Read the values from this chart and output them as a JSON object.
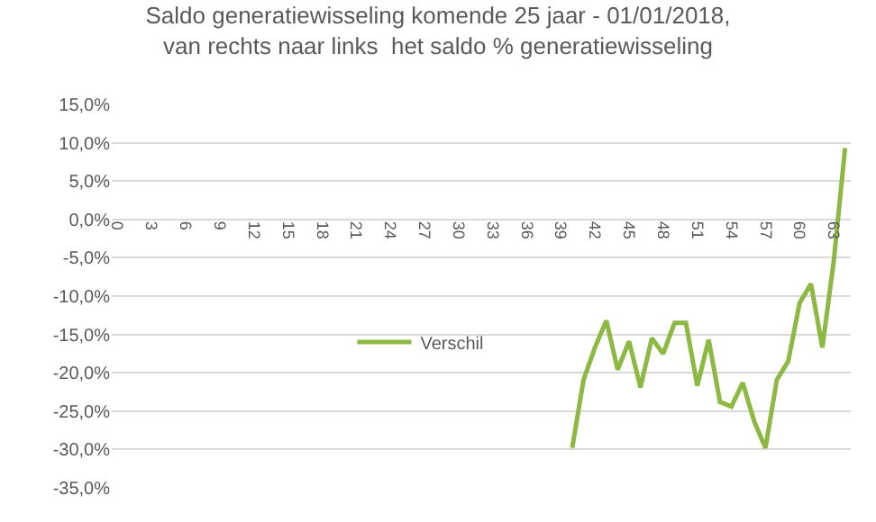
{
  "chart_data": {
    "type": "line",
    "title": "Saldo generatiewisseling komende 25 jaar - 01/01/2018,\nvan rechts naar links  het saldo % generatiewisseling",
    "categories": [
      "0",
      null,
      null,
      "3",
      null,
      null,
      "6",
      null,
      null,
      "9",
      null,
      null,
      "12",
      null,
      null,
      "15",
      null,
      null,
      "18",
      null,
      null,
      "21",
      null,
      null,
      "24",
      null,
      null,
      "27",
      null,
      null,
      "30",
      null,
      null,
      "33",
      null,
      null,
      "36",
      null,
      null,
      "39",
      null,
      null,
      "42",
      null,
      null,
      "45",
      null,
      null,
      "48",
      null,
      null,
      "51",
      null,
      null,
      "54",
      null,
      null,
      "57",
      null,
      null,
      "60",
      null,
      null,
      "63",
      null
    ],
    "series": [
      {
        "name": "Verschil",
        "color": "#8cb843",
        "values": [
          null,
          null,
          null,
          null,
          null,
          null,
          null,
          null,
          null,
          null,
          null,
          null,
          null,
          null,
          null,
          null,
          null,
          null,
          null,
          null,
          null,
          null,
          null,
          null,
          null,
          null,
          null,
          null,
          null,
          null,
          null,
          null,
          null,
          null,
          null,
          null,
          null,
          null,
          null,
          null,
          -29.8,
          -20.9,
          -16.7,
          -13.2,
          -19.6,
          -15.9,
          -21.9,
          -15.5,
          -17.5,
          -13.5,
          -13.5,
          -21.7,
          -15.7,
          -23.8,
          -24.4,
          -21.3,
          -26.3,
          -29.8,
          -20.9,
          -18.5,
          -10.9,
          -8.4,
          -16.7,
          -5.5,
          9.3
        ]
      }
    ],
    "ylim": [
      -35,
      15
    ],
    "yticks": [
      {
        "value": 15,
        "label": "15,0%"
      },
      {
        "value": 10,
        "label": "10,0%"
      },
      {
        "value": 5,
        "label": "5,0%"
      },
      {
        "value": 0,
        "label": "0,0%"
      },
      {
        "value": -5,
        "label": "-5,0%"
      },
      {
        "value": -10,
        "label": "-10,0%"
      },
      {
        "value": -15,
        "label": "-15,0%"
      },
      {
        "value": -20,
        "label": "-20,0%"
      },
      {
        "value": -25,
        "label": "-25,0%"
      },
      {
        "value": -30,
        "label": "-30,0%"
      },
      {
        "value": -35,
        "label": "-35,0%"
      }
    ],
    "grid": "y",
    "legend": "center",
    "marker": "none",
    "line_style": "solid"
  }
}
